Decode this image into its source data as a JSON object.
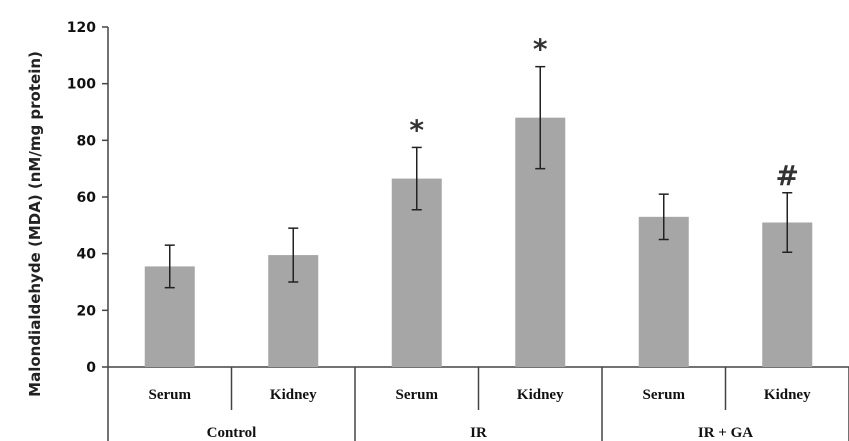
{
  "chart_data": {
    "type": "bar",
    "ylabel": "Malondialdehyde (MDA) (nM/mg protein)",
    "ylim": [
      0,
      120
    ],
    "yticks": [
      0,
      20,
      40,
      60,
      80,
      100,
      120
    ],
    "grid": false,
    "groups": [
      {
        "label": "Control",
        "categories": [
          "Serum",
          "Kidney"
        ]
      },
      {
        "label": "IR",
        "categories": [
          "Serum",
          "Kidney"
        ]
      },
      {
        "label": "IR + GA",
        "categories": [
          "Serum",
          "Kidney"
        ]
      }
    ],
    "categories": [
      "Serum",
      "Kidney",
      "Serum",
      "Kidney",
      "Serum",
      "Kidney"
    ],
    "values": [
      35.5,
      39.5,
      66.5,
      88,
      53,
      51
    ],
    "errors": [
      7.5,
      9.5,
      11,
      18,
      8,
      10.5
    ],
    "annotations": [
      "",
      "",
      "*",
      "*",
      "",
      "#"
    ],
    "colors": {
      "bar": "#a6a6a6",
      "axis": "#444444",
      "error": "#222222"
    }
  }
}
